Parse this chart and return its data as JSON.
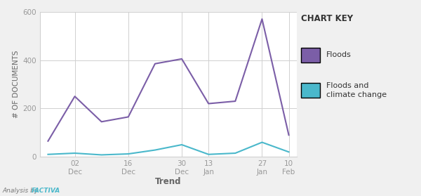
{
  "x_positions": [
    0,
    1,
    2,
    3,
    4,
    5,
    6,
    7,
    8,
    9
  ],
  "floods_values": [
    65,
    250,
    145,
    165,
    385,
    405,
    220,
    230,
    570,
    90
  ],
  "climate_values": [
    10,
    15,
    8,
    12,
    28,
    50,
    10,
    15,
    60,
    20
  ],
  "tick_positions": [
    1,
    3,
    5,
    6,
    8,
    9
  ],
  "tick_labels_top": [
    "02",
    "16",
    "30",
    "13",
    "27",
    "10"
  ],
  "tick_labels_bot": [
    "Dec",
    "Dec",
    "Dec",
    "Jan",
    "Jan",
    "Feb"
  ],
  "floods_color": "#7b5ea7",
  "climate_color": "#4ab8cb",
  "ylim": [
    0,
    600
  ],
  "yticks": [
    0,
    200,
    400,
    600
  ],
  "ylabel": "# OF DOCUMENTS",
  "xlabel": "Trend",
  "chart_key_title": "CHART KEY",
  "legend_floods": "Floods",
  "legend_climate": "Floods and\nclimate change",
  "annotation": "Analysis by ",
  "annotation_bold": "FACTIVA",
  "annotation_color": "#4ab8cb",
  "bg_color": "#f0f0f0",
  "plot_bg_color": "#ffffff",
  "grid_color": "#d0d0d0",
  "tick_label_color": "#999999",
  "axis_label_color": "#666666",
  "legend_title_color": "#333333"
}
